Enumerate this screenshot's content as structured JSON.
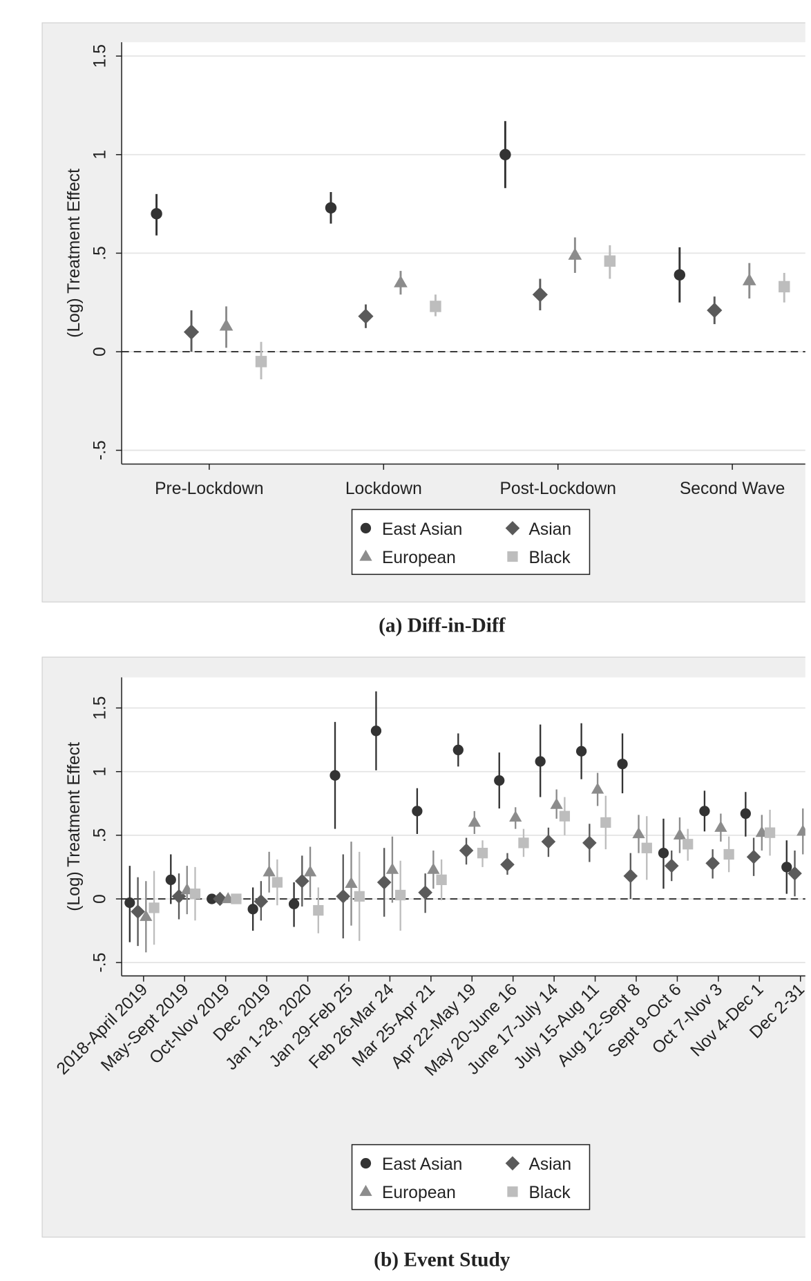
{
  "chart_data": [
    {
      "type": "errorbar",
      "caption": "(a) Diff-in-Diff",
      "ylabel": "(Log) Treatment Effect",
      "categories": [
        "Pre-Lockdown",
        "Lockdown",
        "Post-Lockdown",
        "Second Wave"
      ],
      "ylim": [
        -0.57,
        1.57
      ],
      "yticks": [
        {
          "value": -0.5,
          "label": "-.5"
        },
        0,
        {
          "value": 0.5,
          "label": ".5"
        },
        1,
        1.5
      ],
      "grid": true,
      "reference_line": 0,
      "series": [
        {
          "name": "East Asian",
          "marker": "circle",
          "color": "#333333",
          "values": [
            0.7,
            0.73,
            1.0,
            0.39
          ],
          "ci_low": [
            0.59,
            0.65,
            0.83,
            0.25
          ],
          "ci_high": [
            0.8,
            0.81,
            1.17,
            0.53
          ]
        },
        {
          "name": "Asian",
          "marker": "diamond",
          "color": "#5a5a5a",
          "values": [
            0.1,
            0.18,
            0.29,
            0.21
          ],
          "ci_low": [
            0.0,
            0.12,
            0.21,
            0.14
          ],
          "ci_high": [
            0.21,
            0.24,
            0.37,
            0.28
          ]
        },
        {
          "name": "European",
          "marker": "triangle",
          "color": "#8c8c8c",
          "values": [
            0.13,
            0.35,
            0.49,
            0.36
          ],
          "ci_low": [
            0.02,
            0.29,
            0.4,
            0.27
          ],
          "ci_high": [
            0.23,
            0.41,
            0.58,
            0.45
          ]
        },
        {
          "name": "Black",
          "marker": "square",
          "color": "#bdbdbd",
          "values": [
            -0.05,
            0.23,
            0.46,
            0.33
          ],
          "ci_low": [
            -0.14,
            0.18,
            0.37,
            0.25
          ],
          "ci_high": [
            0.05,
            0.29,
            0.54,
            0.4
          ]
        }
      ]
    },
    {
      "type": "errorbar",
      "caption": "(b) Event Study",
      "ylabel": "(Log) Treatment Effect",
      "categories": [
        "2018-April 2019",
        "May-Sept 2019",
        "Oct-Nov 2019",
        "Dec 2019",
        "Jan 1-28, 2020",
        "Jan 29-Feb 25",
        "Feb 26-Mar 24",
        "Mar 25-Apr 21",
        "Apr 22-May 19",
        "May 20-June 16",
        "June 17-July 14",
        "July 15-Aug 11",
        "Aug 12-Sept 8",
        "Sept 9-Oct 6",
        "Oct 7-Nov 3",
        "Nov 4-Dec 1",
        "Dec 2-31"
      ],
      "ylim": [
        -0.605,
        1.74
      ],
      "yticks": [
        {
          "value": -0.5,
          "label": "-.5"
        },
        0,
        {
          "value": 0.5,
          "label": ".5"
        },
        1,
        1.5
      ],
      "grid": true,
      "reference_line": 0,
      "series": [
        {
          "name": "East Asian",
          "marker": "circle",
          "color": "#333333",
          "values": [
            -0.03,
            0.15,
            0,
            -0.08,
            -0.04,
            0.97,
            1.32,
            0.69,
            1.17,
            0.93,
            1.08,
            1.16,
            1.06,
            0.36,
            0.69,
            0.67,
            0.25
          ],
          "ci_low": [
            -0.34,
            -0.04,
            0,
            -0.25,
            -0.22,
            0.55,
            1.01,
            0.51,
            1.04,
            0.71,
            0.8,
            0.94,
            0.83,
            0.08,
            0.53,
            0.49,
            0.04
          ],
          "ci_high": [
            0.26,
            0.35,
            0,
            0.09,
            0.13,
            1.39,
            1.63,
            0.87,
            1.3,
            1.15,
            1.37,
            1.38,
            1.3,
            0.63,
            0.85,
            0.84,
            0.46
          ]
        },
        {
          "name": "Asian",
          "marker": "diamond",
          "color": "#5a5a5a",
          "values": [
            -0.1,
            0.02,
            0,
            -0.02,
            0.14,
            0.02,
            0.13,
            0.05,
            0.38,
            0.27,
            0.45,
            0.44,
            0.18,
            0.26,
            0.28,
            0.33,
            0.2
          ],
          "ci_low": [
            -0.37,
            -0.16,
            0,
            -0.17,
            -0.06,
            -0.31,
            -0.14,
            -0.11,
            0.27,
            0.19,
            0.33,
            0.29,
            0.0,
            0.14,
            0.16,
            0.18,
            0.02
          ],
          "ci_high": [
            0.17,
            0.2,
            0,
            0.14,
            0.34,
            0.35,
            0.4,
            0.2,
            0.48,
            0.36,
            0.56,
            0.59,
            0.36,
            0.38,
            0.39,
            0.48,
            0.38
          ]
        },
        {
          "name": "European",
          "marker": "triangle",
          "color": "#8c8c8c",
          "values": [
            -0.14,
            0.07,
            0,
            0.21,
            0.21,
            0.12,
            0.23,
            0.23,
            0.6,
            0.64,
            0.74,
            0.86,
            0.51,
            0.5,
            0.56,
            0.52,
            0.53
          ],
          "ci_low": [
            -0.42,
            -0.12,
            0,
            0.05,
            0.01,
            -0.21,
            -0.03,
            0.08,
            0.51,
            0.55,
            0.63,
            0.73,
            0.36,
            0.36,
            0.45,
            0.38,
            0.35
          ],
          "ci_high": [
            0.14,
            0.26,
            0,
            0.37,
            0.41,
            0.45,
            0.49,
            0.38,
            0.69,
            0.72,
            0.86,
            0.99,
            0.66,
            0.64,
            0.67,
            0.66,
            0.71
          ]
        },
        {
          "name": "Black",
          "marker": "square",
          "color": "#bdbdbd",
          "values": [
            -0.07,
            0.04,
            0,
            0.13,
            -0.09,
            0.02,
            0.03,
            0.15,
            0.36,
            0.44,
            0.65,
            0.6,
            0.4,
            0.43,
            0.35,
            0.52,
            null
          ],
          "ci_low": [
            -0.36,
            -0.17,
            0,
            -0.05,
            -0.27,
            -0.33,
            -0.25,
            -0.01,
            0.25,
            0.33,
            0.5,
            0.39,
            0.15,
            0.3,
            0.21,
            0.34,
            null
          ],
          "ci_high": [
            0.22,
            0.25,
            0,
            0.31,
            0.09,
            0.37,
            0.3,
            0.31,
            0.46,
            0.55,
            0.8,
            0.81,
            0.65,
            0.55,
            0.49,
            0.7,
            null
          ]
        }
      ]
    }
  ]
}
